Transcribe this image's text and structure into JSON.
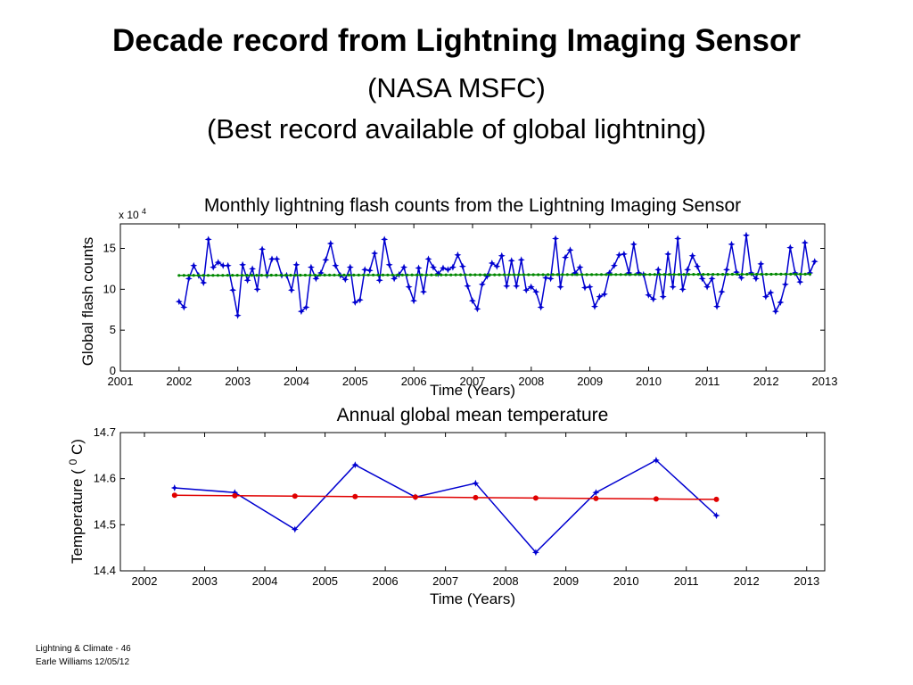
{
  "slide": {
    "title": "Decade record from Lightning Imaging Sensor",
    "subtitle_1": "(NASA MSFC)",
    "subtitle_2": "(Best record available of global lightning)"
  },
  "footer": {
    "line_1": "Lightning & Climate - 46",
    "line_2": "Earle Williams 12/05/12"
  },
  "chart_data": [
    {
      "type": "line",
      "title": "Monthly lightning flash counts from the Lightning Imaging Sensor",
      "xlabel": "Time (Years)",
      "ylabel": "Global flash counts",
      "y_multiplier": "x 10",
      "y_multiplier_exp": "4",
      "xlim": [
        2001,
        2013
      ],
      "ylim": [
        0,
        18
      ],
      "xticks": [
        2001,
        2002,
        2003,
        2004,
        2005,
        2006,
        2007,
        2008,
        2009,
        2010,
        2011,
        2012,
        2013
      ],
      "yticks": [
        0,
        5,
        10,
        15
      ],
      "grid": false,
      "series": [
        {
          "color": "#0000d0",
          "marker": "star",
          "x_start": 2002.0,
          "x_step": 0.0833,
          "values": [
            8.5,
            7.8,
            11.3,
            12.9,
            11.7,
            10.8,
            16.1,
            12.7,
            13.3,
            12.9,
            12.9,
            9.9,
            6.8,
            13.0,
            11.1,
            12.5,
            10.0,
            14.9,
            11.7,
            13.7,
            13.7,
            11.7,
            11.7,
            9.9,
            13.0,
            7.3,
            7.8,
            12.7,
            11.3,
            12.0,
            13.6,
            15.6,
            12.9,
            11.7,
            11.2,
            12.7,
            8.4,
            8.7,
            12.4,
            12.3,
            14.4,
            11.1,
            16.1,
            13.0,
            11.3,
            11.8,
            12.7,
            10.3,
            8.6,
            12.6,
            9.7,
            13.7,
            12.7,
            11.9,
            12.6,
            12.4,
            12.7,
            14.2,
            12.8,
            10.4,
            8.6,
            7.6,
            10.6,
            11.6,
            13.2,
            12.8,
            14.1,
            10.4,
            13.5,
            10.4,
            13.6,
            9.9,
            10.3,
            9.7,
            7.8,
            11.4,
            11.3,
            16.2,
            10.3,
            13.9,
            14.8,
            12.0,
            12.7,
            10.2,
            10.3,
            7.9,
            9.1,
            9.4,
            12.0,
            12.9,
            14.2,
            14.3,
            12.0,
            15.5,
            12.0,
            11.8,
            9.3,
            8.8,
            12.4,
            9.1,
            14.3,
            10.3,
            16.2,
            10.0,
            12.4,
            14.1,
            12.8,
            11.3,
            10.3,
            11.3,
            7.9,
            9.7,
            12.4,
            15.5,
            12.1,
            11.4,
            16.6,
            12.0,
            11.3,
            13.1,
            9.1,
            9.6,
            7.3,
            8.4,
            10.6,
            15.1,
            12.0,
            10.9,
            15.7,
            12.0,
            13.4
          ]
        },
        {
          "color": "#008800",
          "marker": "dot",
          "x": [
            2002.0,
            2012.75
          ],
          "values": [
            11.7,
            11.85
          ]
        }
      ]
    },
    {
      "type": "line",
      "title": "Annual global mean temperature",
      "xlabel": "Time (Years)",
      "ylabel": "Temperature (",
      "ylabel_sup": "0",
      "ylabel_tail": "C)",
      "xlim": [
        2001.6,
        2013.3
      ],
      "ylim": [
        14.4,
        14.7
      ],
      "xticks": [
        2002,
        2003,
        2004,
        2005,
        2006,
        2007,
        2008,
        2009,
        2010,
        2011,
        2012,
        2013
      ],
      "yticks": [
        "14.4",
        "14.5",
        "14.6",
        "14.7"
      ],
      "grid": false,
      "series": [
        {
          "color": "#0000d0",
          "marker": "star",
          "x": [
            2002.5,
            2003.5,
            2004.5,
            2005.5,
            2006.5,
            2007.5,
            2008.5,
            2009.5,
            2010.5,
            2011.5
          ],
          "values": [
            14.58,
            14.57,
            14.49,
            14.63,
            14.56,
            14.59,
            14.44,
            14.57,
            14.64,
            14.52
          ]
        },
        {
          "color": "#e00000",
          "marker": "dot",
          "x": [
            2002.5,
            2003.5,
            2004.5,
            2005.5,
            2006.5,
            2007.5,
            2008.5,
            2009.5,
            2010.5,
            2011.5
          ],
          "values": [
            14.564,
            14.563,
            14.562,
            14.561,
            14.56,
            14.559,
            14.558,
            14.557,
            14.556,
            14.555
          ]
        }
      ]
    }
  ]
}
